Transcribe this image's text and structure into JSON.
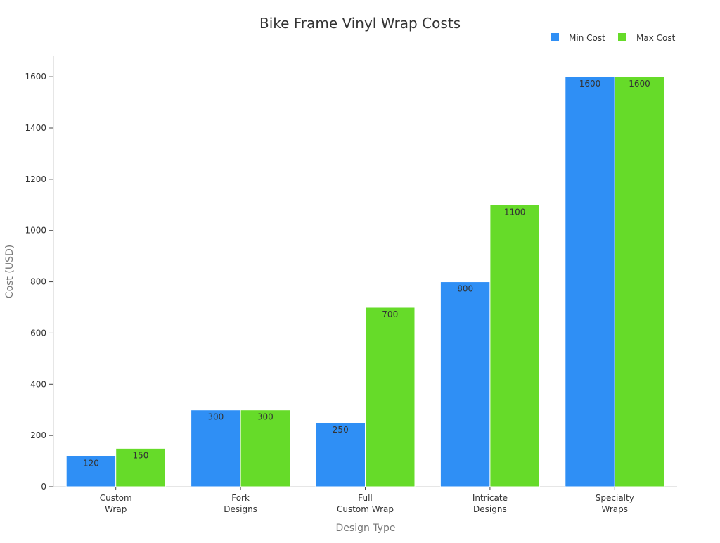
{
  "chart_data": {
    "type": "bar",
    "title": "Bike Frame Vinyl Wrap Costs",
    "xlabel": "Design Type",
    "ylabel": "Cost (USD)",
    "categories": [
      [
        "Custom",
        "Wrap"
      ],
      [
        "Fork",
        "Designs"
      ],
      [
        "Full",
        "Custom Wrap"
      ],
      [
        "Intricate",
        "Designs"
      ],
      [
        "Specialty",
        "Wraps"
      ]
    ],
    "series": [
      {
        "name": "Min Cost",
        "color": "#2f8ff5",
        "values": [
          120,
          300,
          250,
          800,
          1600
        ]
      },
      {
        "name": "Max Cost",
        "color": "#66db29",
        "values": [
          150,
          300,
          700,
          1100,
          1600
        ]
      }
    ],
    "ylim": [
      0,
      1680
    ],
    "yticks": [
      0,
      200,
      400,
      600,
      800,
      1000,
      1200,
      1400,
      1600
    ],
    "grid": false,
    "legend_position": "top-right",
    "data_labels": true
  }
}
